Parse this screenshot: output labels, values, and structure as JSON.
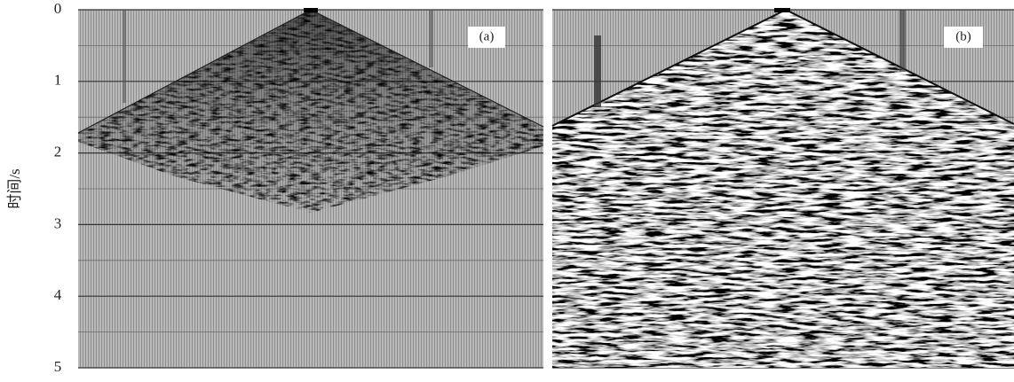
{
  "axis": {
    "label": "时间/s",
    "range": [
      0,
      5
    ],
    "ticks": [
      0,
      1,
      2,
      3,
      4,
      5
    ],
    "minor_ticks": [
      0.5,
      1.5,
      2.5,
      3.5,
      4.5
    ]
  },
  "panels": [
    {
      "label": "(a)"
    },
    {
      "label": "(b)"
    }
  ]
}
